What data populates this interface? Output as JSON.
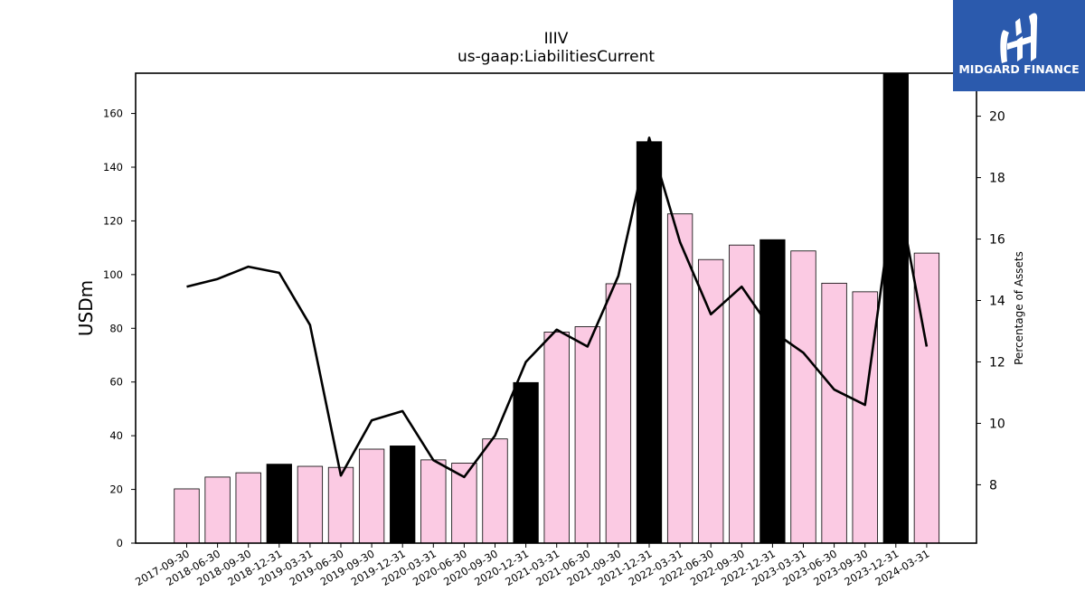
{
  "chart_data": {
    "type": "bar",
    "title": "IIIV",
    "subtitle": "us-gaap:LiabilitiesCurrent",
    "ylabel": "USDm",
    "y2label": "Percentage of Assets",
    "ylim": [
      0,
      175
    ],
    "y2lim": [
      6.1,
      21.4
    ],
    "yticks": [
      0,
      20,
      40,
      60,
      80,
      100,
      120,
      140,
      160
    ],
    "y2ticks": [
      8,
      10,
      12,
      14,
      16,
      18,
      20
    ],
    "categories": [
      "2017-09-30",
      "2018-06-30",
      "2018-09-30",
      "2018-12-31",
      "2019-03-31",
      "2019-06-30",
      "2019-09-30",
      "2019-12-31",
      "2020-03-31",
      "2020-06-30",
      "2020-09-30",
      "2020-12-31",
      "2021-03-31",
      "2021-06-30",
      "2021-09-30",
      "2021-12-31",
      "2022-03-31",
      "2022-06-30",
      "2022-09-30",
      "2022-12-31",
      "2023-03-31",
      "2023-06-30",
      "2023-09-30",
      "2023-12-31",
      "2024-03-31"
    ],
    "series": [
      {
        "kind": "bar",
        "values": [
          20.2,
          24.6,
          26.2,
          29.4,
          28.6,
          28.2,
          35.0,
          36.2,
          31.0,
          29.8,
          38.8,
          59.8,
          78.6,
          80.6,
          96.6,
          149.5,
          122.6,
          105.6,
          111.0,
          113.0,
          108.8,
          96.8,
          93.6,
          175.0,
          108.0
        ],
        "highlight": [
          false,
          false,
          false,
          true,
          false,
          false,
          false,
          true,
          false,
          false,
          false,
          true,
          false,
          false,
          false,
          true,
          false,
          false,
          false,
          true,
          false,
          false,
          false,
          true,
          false
        ]
      },
      {
        "kind": "line",
        "axis": "right",
        "values": [
          14.45,
          14.7,
          15.1,
          14.9,
          13.2,
          8.3,
          10.1,
          10.4,
          8.8,
          8.25,
          9.6,
          12.0,
          13.05,
          12.5,
          14.8,
          19.3,
          15.9,
          13.55,
          14.45,
          13.0,
          12.3,
          11.1,
          10.6,
          17.9,
          12.5
        ]
      }
    ],
    "colors": {
      "bar": "#fbcae3",
      "bar_highlight": "#000000",
      "line": "#000000"
    },
    "grid": false
  },
  "logo": {
    "text": "MIDGARD FINANCE",
    "color": "#2b5aad"
  }
}
